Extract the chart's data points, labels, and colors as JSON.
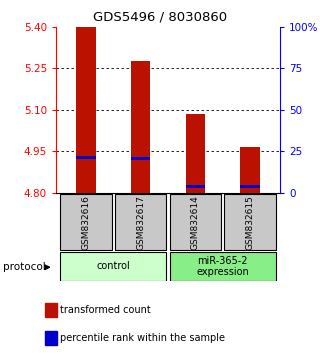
{
  "title": "GDS5496 / 8030860",
  "samples": [
    "GSM832616",
    "GSM832617",
    "GSM832614",
    "GSM832615"
  ],
  "bar_tops": [
    5.4,
    5.275,
    5.085,
    4.965
  ],
  "bar_bottom": 4.8,
  "blue_marker_values": [
    4.928,
    4.924,
    4.822,
    4.822
  ],
  "ylim_left": [
    4.8,
    5.4
  ],
  "ylim_right": [
    0,
    100
  ],
  "left_ticks": [
    4.8,
    4.95,
    5.1,
    5.25,
    5.4
  ],
  "right_ticks": [
    0,
    25,
    50,
    75,
    100
  ],
  "right_tick_labels": [
    "0",
    "25",
    "50",
    "75",
    "100%"
  ],
  "gridlines_at": [
    4.95,
    5.1,
    5.25
  ],
  "bar_color": "#bb1100",
  "blue_marker_color": "#0000cc",
  "group_labels": [
    "control",
    "miR-365-2\nexpression"
  ],
  "group_ranges": [
    [
      0,
      2
    ],
    [
      2,
      4
    ]
  ],
  "group_color_control": "#ccffcc",
  "group_color_mir": "#88ee88",
  "sample_box_color": "#c8c8c8",
  "legend_red_label": "transformed count",
  "legend_blue_label": "percentile rank within the sample",
  "protocol_label": "protocol"
}
